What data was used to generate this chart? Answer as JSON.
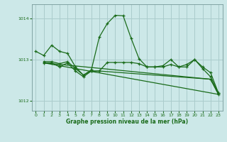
{
  "bg_color": "#cce8e8",
  "grid_color": "#aacccc",
  "line_color": "#1a6b1a",
  "xlabel": "Graphe pression niveau de la mer (hPa)",
  "ylim": [
    1011.75,
    1014.35
  ],
  "xlim": [
    -0.5,
    23.5
  ],
  "yticks": [
    1012,
    1013,
    1014
  ],
  "xticks": [
    0,
    1,
    2,
    3,
    4,
    5,
    6,
    7,
    8,
    9,
    10,
    11,
    12,
    13,
    14,
    15,
    16,
    17,
    18,
    19,
    20,
    21,
    22,
    23
  ],
  "series1_x": [
    0,
    1,
    2,
    3,
    4,
    5,
    6,
    7,
    8,
    9,
    10,
    11,
    12,
    13,
    14,
    15,
    16,
    17,
    18,
    19,
    20,
    21,
    22,
    23
  ],
  "series1_y": [
    1013.2,
    1013.1,
    1013.35,
    1013.2,
    1013.15,
    1012.82,
    1012.62,
    1012.75,
    1013.55,
    1013.88,
    1014.08,
    1014.07,
    1013.52,
    1013.02,
    1012.82,
    1012.82,
    1012.85,
    1013.0,
    1012.82,
    1012.82,
    1013.0,
    1012.78,
    1012.58,
    1012.18
  ],
  "series2_x": [
    1,
    2,
    3,
    4,
    5,
    6,
    7,
    8,
    9,
    10,
    11,
    12,
    13,
    14,
    15,
    16,
    17,
    18,
    19,
    20,
    21,
    22,
    23
  ],
  "series2_y": [
    1012.95,
    1012.95,
    1012.9,
    1012.95,
    1012.78,
    1012.62,
    1012.72,
    1012.72,
    1012.93,
    1012.93,
    1012.93,
    1012.93,
    1012.9,
    1012.82,
    1012.82,
    1012.82,
    1012.88,
    1012.82,
    1012.88,
    1013.0,
    1012.82,
    1012.68,
    1012.18
  ],
  "series3_x": [
    1,
    2,
    3,
    4,
    5,
    6,
    7,
    8,
    22,
    23
  ],
  "series3_y": [
    1012.92,
    1012.92,
    1012.82,
    1012.92,
    1012.72,
    1012.58,
    1012.72,
    1012.72,
    1012.52,
    1012.15
  ],
  "series4_x": [
    1,
    23
  ],
  "series4_y": [
    1012.92,
    1012.15
  ],
  "series5_x": [
    1,
    22,
    23
  ],
  "series5_y": [
    1012.92,
    1012.52,
    1012.15
  ]
}
